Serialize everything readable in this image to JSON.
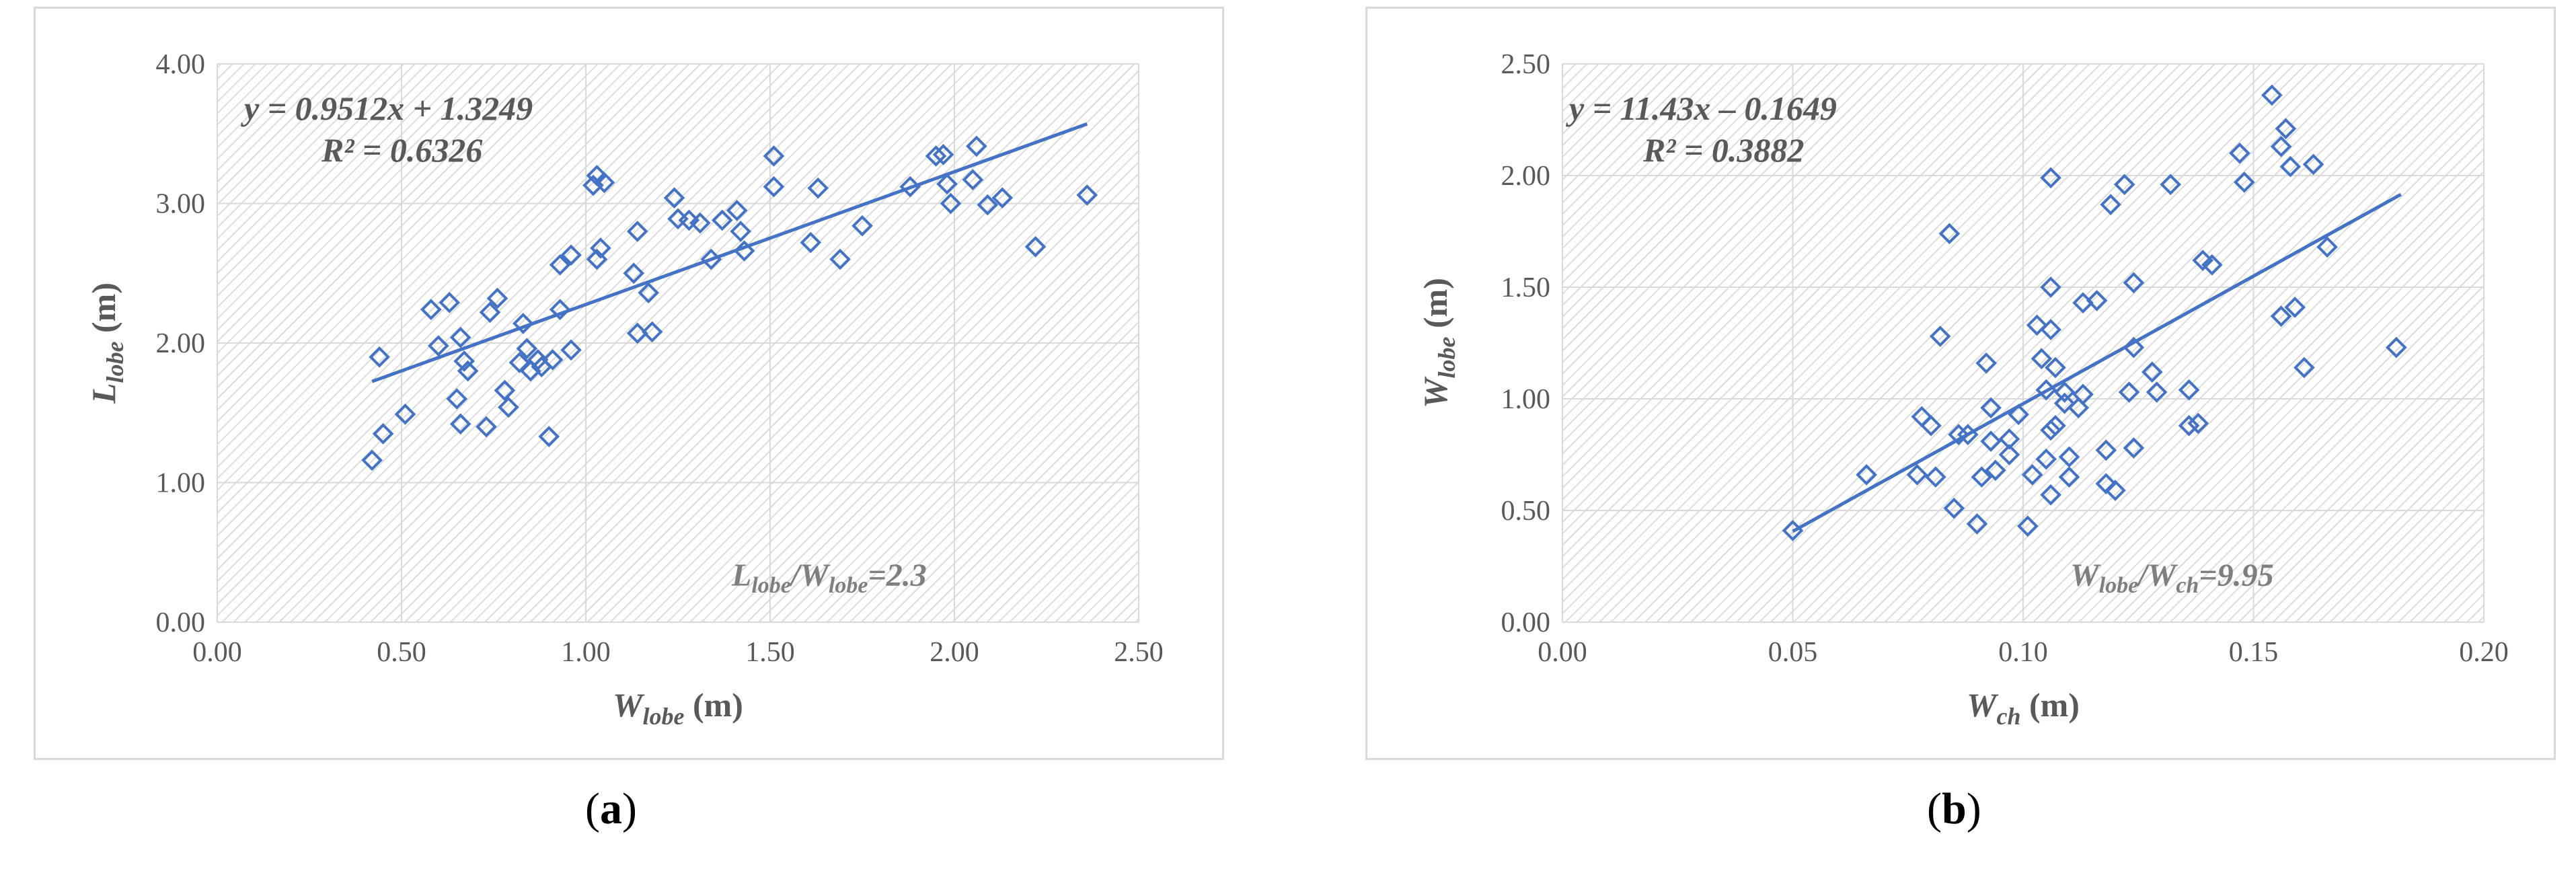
{
  "chart_data": [
    {
      "id": "a",
      "type": "scatter",
      "caption": "(a)",
      "caption_letter": "a",
      "xlabel_main": "W",
      "xlabel_sub": "lobe",
      "xlabel_unit": " (m)",
      "ylabel_main": "L",
      "ylabel_sub": "lobe",
      "ylabel_unit": " (m)",
      "xlim": [
        0,
        2.5
      ],
      "ylim": [
        0,
        4
      ],
      "xticks": [
        0,
        0.5,
        1,
        1.5,
        2,
        2.5
      ],
      "yticks": [
        0,
        1,
        2,
        3,
        4
      ],
      "xtick_labels": [
        "0.00",
        "0.50",
        "1.00",
        "1.50",
        "2.00",
        "2.50"
      ],
      "ytick_labels": [
        "0.00",
        "1.00",
        "2.00",
        "3.00",
        "4.00"
      ],
      "grid": true,
      "marker_color": "#4472c4",
      "trend_color": "#4472c4",
      "trendline": {
        "slope": 0.9512,
        "intercept": 1.3249,
        "x_range": [
          0.42,
          2.36
        ]
      },
      "equation": "y = 0.9512x + 1.3249",
      "r2_label": "R² = 0.6326",
      "ratio_main_1": "L",
      "ratio_sub_1": "lobe",
      "ratio_main_2": "/W",
      "ratio_sub_2": "lobe",
      "ratio_value": "=2.3",
      "points": [
        [
          0.42,
          1.16
        ],
        [
          0.44,
          1.9
        ],
        [
          0.45,
          1.35
        ],
        [
          0.51,
          1.49
        ],
        [
          0.58,
          2.24
        ],
        [
          0.6,
          1.98
        ],
        [
          0.63,
          2.29
        ],
        [
          0.65,
          1.6
        ],
        [
          0.66,
          1.42
        ],
        [
          0.66,
          2.04
        ],
        [
          0.67,
          1.87
        ],
        [
          0.68,
          1.8
        ],
        [
          0.73,
          1.4
        ],
        [
          0.74,
          2.22
        ],
        [
          0.76,
          2.32
        ],
        [
          0.78,
          1.66
        ],
        [
          0.79,
          1.54
        ],
        [
          0.82,
          1.86
        ],
        [
          0.83,
          2.14
        ],
        [
          0.84,
          1.96
        ],
        [
          0.85,
          1.8
        ],
        [
          0.87,
          1.88
        ],
        [
          0.88,
          1.83
        ],
        [
          0.9,
          1.33
        ],
        [
          0.91,
          1.88
        ],
        [
          0.93,
          2.56
        ],
        [
          0.93,
          2.24
        ],
        [
          0.96,
          2.63
        ],
        [
          0.96,
          1.95
        ],
        [
          1.02,
          3.13
        ],
        [
          1.03,
          3.2
        ],
        [
          1.03,
          2.6
        ],
        [
          1.04,
          2.68
        ],
        [
          1.05,
          3.15
        ],
        [
          1.13,
          2.5
        ],
        [
          1.14,
          2.8
        ],
        [
          1.14,
          2.07
        ],
        [
          1.17,
          2.36
        ],
        [
          1.18,
          2.08
        ],
        [
          1.24,
          3.04
        ],
        [
          1.25,
          2.89
        ],
        [
          1.28,
          2.88
        ],
        [
          1.31,
          2.86
        ],
        [
          1.34,
          2.6
        ],
        [
          1.37,
          2.88
        ],
        [
          1.41,
          2.95
        ],
        [
          1.42,
          2.8
        ],
        [
          1.43,
          2.66
        ],
        [
          1.51,
          3.12
        ],
        [
          1.51,
          3.34
        ],
        [
          1.61,
          2.72
        ],
        [
          1.63,
          3.11
        ],
        [
          1.69,
          2.6
        ],
        [
          1.75,
          2.84
        ],
        [
          1.88,
          3.12
        ],
        [
          1.95,
          3.34
        ],
        [
          1.97,
          3.35
        ],
        [
          1.98,
          3.14
        ],
        [
          1.99,
          3.0
        ],
        [
          2.05,
          3.17
        ],
        [
          2.06,
          3.41
        ],
        [
          2.09,
          2.99
        ],
        [
          2.13,
          3.04
        ],
        [
          2.22,
          2.69
        ],
        [
          2.36,
          3.06
        ]
      ]
    },
    {
      "id": "b",
      "type": "scatter",
      "caption": "(b)",
      "caption_letter": "b",
      "xlabel_main": "W",
      "xlabel_sub": "ch",
      "xlabel_unit": " (m)",
      "ylabel_main": "W",
      "ylabel_sub": "lobe",
      "ylabel_unit": " (m)",
      "xlim": [
        0,
        0.2
      ],
      "ylim": [
        0,
        2.5
      ],
      "xticks": [
        0,
        0.05,
        0.1,
        0.15,
        0.2
      ],
      "yticks": [
        0,
        0.5,
        1,
        1.5,
        2,
        2.5
      ],
      "xtick_labels": [
        "0.00",
        "0.05",
        "0.10",
        "0.15",
        "0.20"
      ],
      "ytick_labels": [
        "0.00",
        "0.50",
        "1.00",
        "1.50",
        "2.00",
        "2.50"
      ],
      "grid": true,
      "marker_color": "#4472c4",
      "trend_color": "#4472c4",
      "trendline": {
        "slope": 11.43,
        "intercept": -0.1649,
        "x_range": [
          0.05,
          0.182
        ]
      },
      "equation": "y = 11.43x – 0.1649",
      "r2_label": "R² = 0.3882",
      "ratio_main_1": "W",
      "ratio_sub_1": "lobe",
      "ratio_main_2": "/W",
      "ratio_sub_2": "ch",
      "ratio_value": "=9.95",
      "points": [
        [
          0.05,
          0.41
        ],
        [
          0.066,
          0.66
        ],
        [
          0.077,
          0.66
        ],
        [
          0.078,
          0.92
        ],
        [
          0.08,
          0.88
        ],
        [
          0.081,
          0.65
        ],
        [
          0.082,
          1.28
        ],
        [
          0.084,
          1.74
        ],
        [
          0.085,
          0.51
        ],
        [
          0.086,
          0.84
        ],
        [
          0.088,
          0.84
        ],
        [
          0.09,
          0.44
        ],
        [
          0.091,
          0.65
        ],
        [
          0.092,
          1.16
        ],
        [
          0.093,
          0.96
        ],
        [
          0.093,
          0.81
        ],
        [
          0.094,
          0.68
        ],
        [
          0.097,
          0.75
        ],
        [
          0.097,
          0.82
        ],
        [
          0.099,
          0.93
        ],
        [
          0.101,
          0.43
        ],
        [
          0.102,
          0.66
        ],
        [
          0.103,
          1.33
        ],
        [
          0.104,
          1.18
        ],
        [
          0.105,
          0.73
        ],
        [
          0.105,
          1.04
        ],
        [
          0.106,
          0.86
        ],
        [
          0.106,
          0.57
        ],
        [
          0.106,
          1.5
        ],
        [
          0.106,
          1.31
        ],
        [
          0.106,
          1.99
        ],
        [
          0.107,
          1.14
        ],
        [
          0.107,
          0.88
        ],
        [
          0.109,
          1.03
        ],
        [
          0.109,
          0.98
        ],
        [
          0.11,
          0.74
        ],
        [
          0.11,
          0.65
        ],
        [
          0.112,
          0.96
        ],
        [
          0.113,
          1.02
        ],
        [
          0.113,
          1.43
        ],
        [
          0.116,
          1.44
        ],
        [
          0.118,
          0.62
        ],
        [
          0.118,
          0.77
        ],
        [
          0.119,
          1.87
        ],
        [
          0.12,
          0.59
        ],
        [
          0.122,
          1.96
        ],
        [
          0.123,
          1.03
        ],
        [
          0.124,
          1.23
        ],
        [
          0.124,
          1.52
        ],
        [
          0.124,
          0.78
        ],
        [
          0.128,
          1.12
        ],
        [
          0.129,
          1.03
        ],
        [
          0.132,
          1.96
        ],
        [
          0.136,
          1.04
        ],
        [
          0.136,
          0.88
        ],
        [
          0.138,
          0.89
        ],
        [
          0.139,
          1.62
        ],
        [
          0.141,
          1.6
        ],
        [
          0.147,
          2.1
        ],
        [
          0.148,
          1.97
        ],
        [
          0.154,
          2.36
        ],
        [
          0.156,
          2.13
        ],
        [
          0.156,
          1.37
        ],
        [
          0.157,
          2.21
        ],
        [
          0.158,
          2.04
        ],
        [
          0.159,
          1.41
        ],
        [
          0.161,
          1.14
        ],
        [
          0.163,
          2.05
        ],
        [
          0.166,
          1.68
        ],
        [
          0.181,
          1.23
        ]
      ]
    }
  ]
}
